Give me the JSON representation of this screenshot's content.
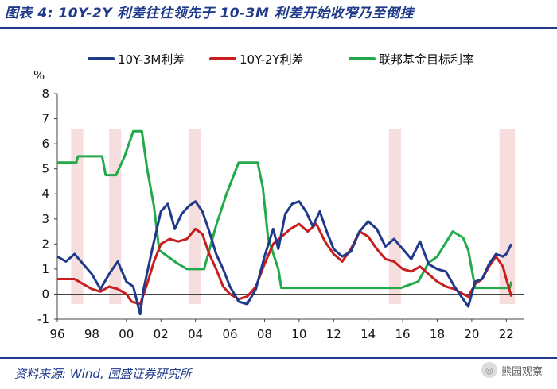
{
  "header": {
    "title": "图表 4: 10Y-2Y 利差往往领先于 10-3M 利差开始收窄乃至倒挂"
  },
  "footer": {
    "source": "资料来源: Wind, 国盛证券研究所",
    "watermark": "熊园观察"
  },
  "chart_data": {
    "type": "line",
    "yunit": "%",
    "ylim": [
      -1,
      8
    ],
    "yticks": [
      -1,
      0,
      1,
      2,
      3,
      4,
      5,
      6,
      7,
      8
    ],
    "xlim": [
      1996,
      2023
    ],
    "xticks": [
      {
        "year": 1996,
        "label": "96"
      },
      {
        "year": 1998,
        "label": "98"
      },
      {
        "year": 2000,
        "label": "00"
      },
      {
        "year": 2002,
        "label": "02"
      },
      {
        "year": 2004,
        "label": "04"
      },
      {
        "year": 2006,
        "label": "06"
      },
      {
        "year": 2008,
        "label": "08"
      },
      {
        "year": 2010,
        "label": "10"
      },
      {
        "year": 2012,
        "label": "12"
      },
      {
        "year": 2014,
        "label": "14"
      },
      {
        "year": 2016,
        "label": "16"
      },
      {
        "year": 2018,
        "label": "18"
      },
      {
        "year": 2020,
        "label": "20"
      },
      {
        "year": 2022,
        "label": "22"
      }
    ],
    "legend_position": "top",
    "shaded_periods": [
      [
        1996.8,
        1997.5
      ],
      [
        1999.0,
        1999.7
      ],
      [
        2003.6,
        2004.3
      ],
      [
        2015.2,
        2015.9
      ],
      [
        2021.6,
        2022.5
      ]
    ],
    "shade_color": "#f7dede",
    "series": [
      {
        "name": "10Y-3M利差",
        "color": "#1f3a8a",
        "points": [
          [
            1996.0,
            1.5
          ],
          [
            1996.5,
            1.3
          ],
          [
            1997.0,
            1.6
          ],
          [
            1997.5,
            1.2
          ],
          [
            1998.0,
            0.8
          ],
          [
            1998.5,
            0.2
          ],
          [
            1999.0,
            0.8
          ],
          [
            1999.5,
            1.3
          ],
          [
            2000.0,
            0.5
          ],
          [
            2000.4,
            0.3
          ],
          [
            2000.8,
            -0.8
          ],
          [
            2001.0,
            0.2
          ],
          [
            2001.5,
            1.8
          ],
          [
            2002.0,
            3.3
          ],
          [
            2002.4,
            3.6
          ],
          [
            2002.8,
            2.6
          ],
          [
            2003.2,
            3.2
          ],
          [
            2003.6,
            3.5
          ],
          [
            2004.0,
            3.7
          ],
          [
            2004.4,
            3.3
          ],
          [
            2004.8,
            2.5
          ],
          [
            2005.2,
            1.6
          ],
          [
            2005.6,
            1.0
          ],
          [
            2006.0,
            0.3
          ],
          [
            2006.5,
            -0.3
          ],
          [
            2007.0,
            -0.4
          ],
          [
            2007.5,
            0.2
          ],
          [
            2008.0,
            1.5
          ],
          [
            2008.5,
            2.6
          ],
          [
            2008.8,
            1.8
          ],
          [
            2009.2,
            3.2
          ],
          [
            2009.6,
            3.6
          ],
          [
            2010.0,
            3.7
          ],
          [
            2010.4,
            3.3
          ],
          [
            2010.8,
            2.7
          ],
          [
            2011.2,
            3.3
          ],
          [
            2011.6,
            2.5
          ],
          [
            2012.0,
            1.8
          ],
          [
            2012.5,
            1.5
          ],
          [
            2013.0,
            1.7
          ],
          [
            2013.5,
            2.5
          ],
          [
            2014.0,
            2.9
          ],
          [
            2014.5,
            2.6
          ],
          [
            2015.0,
            1.9
          ],
          [
            2015.5,
            2.2
          ],
          [
            2016.0,
            1.8
          ],
          [
            2016.5,
            1.4
          ],
          [
            2017.0,
            2.1
          ],
          [
            2017.5,
            1.2
          ],
          [
            2018.0,
            1.0
          ],
          [
            2018.5,
            0.9
          ],
          [
            2019.0,
            0.3
          ],
          [
            2019.5,
            -0.2
          ],
          [
            2019.8,
            -0.5
          ],
          [
            2020.2,
            0.5
          ],
          [
            2020.6,
            0.6
          ],
          [
            2021.0,
            1.2
          ],
          [
            2021.4,
            1.6
          ],
          [
            2021.8,
            1.5
          ],
          [
            2022.0,
            1.6
          ],
          [
            2022.3,
            2.0
          ]
        ]
      },
      {
        "name": "10Y-2Y利差",
        "color": "#c81e1e",
        "points": [
          [
            1996.0,
            0.6
          ],
          [
            1996.5,
            0.6
          ],
          [
            1997.0,
            0.6
          ],
          [
            1997.5,
            0.4
          ],
          [
            1998.0,
            0.2
          ],
          [
            1998.5,
            0.1
          ],
          [
            1999.0,
            0.3
          ],
          [
            1999.5,
            0.2
          ],
          [
            2000.0,
            0.0
          ],
          [
            2000.3,
            -0.3
          ],
          [
            2000.8,
            -0.4
          ],
          [
            2001.2,
            0.4
          ],
          [
            2001.6,
            1.3
          ],
          [
            2002.0,
            2.0
          ],
          [
            2002.5,
            2.2
          ],
          [
            2003.0,
            2.1
          ],
          [
            2003.5,
            2.2
          ],
          [
            2004.0,
            2.6
          ],
          [
            2004.4,
            2.4
          ],
          [
            2004.8,
            1.6
          ],
          [
            2005.2,
            1.0
          ],
          [
            2005.6,
            0.3
          ],
          [
            2006.0,
            0.0
          ],
          [
            2006.5,
            -0.2
          ],
          [
            2007.0,
            -0.1
          ],
          [
            2007.5,
            0.3
          ],
          [
            2008.0,
            1.2
          ],
          [
            2008.5,
            2.0
          ],
          [
            2009.0,
            2.3
          ],
          [
            2009.5,
            2.6
          ],
          [
            2010.0,
            2.8
          ],
          [
            2010.5,
            2.5
          ],
          [
            2011.0,
            2.8
          ],
          [
            2011.5,
            2.1
          ],
          [
            2012.0,
            1.6
          ],
          [
            2012.5,
            1.3
          ],
          [
            2013.0,
            1.8
          ],
          [
            2013.5,
            2.5
          ],
          [
            2014.0,
            2.3
          ],
          [
            2014.5,
            1.8
          ],
          [
            2015.0,
            1.4
          ],
          [
            2015.5,
            1.3
          ],
          [
            2016.0,
            1.0
          ],
          [
            2016.5,
            0.9
          ],
          [
            2017.0,
            1.1
          ],
          [
            2017.5,
            0.8
          ],
          [
            2018.0,
            0.5
          ],
          [
            2018.5,
            0.3
          ],
          [
            2019.0,
            0.2
          ],
          [
            2019.5,
            0.0
          ],
          [
            2019.8,
            -0.1
          ],
          [
            2020.2,
            0.4
          ],
          [
            2020.6,
            0.6
          ],
          [
            2021.0,
            1.1
          ],
          [
            2021.4,
            1.5
          ],
          [
            2021.8,
            1.1
          ],
          [
            2022.0,
            0.6
          ],
          [
            2022.3,
            -0.1
          ]
        ]
      },
      {
        "name": "联邦基金目标利率",
        "color": "#22aa4a",
        "points": [
          [
            1996.0,
            5.25
          ],
          [
            1997.1,
            5.25
          ],
          [
            1997.2,
            5.5
          ],
          [
            1998.6,
            5.5
          ],
          [
            1998.8,
            4.75
          ],
          [
            1999.4,
            4.75
          ],
          [
            1999.9,
            5.5
          ],
          [
            2000.4,
            6.5
          ],
          [
            2000.9,
            6.5
          ],
          [
            2001.2,
            5.0
          ],
          [
            2001.6,
            3.5
          ],
          [
            2001.9,
            1.75
          ],
          [
            2002.9,
            1.25
          ],
          [
            2003.5,
            1.0
          ],
          [
            2004.5,
            1.0
          ],
          [
            2005.2,
            2.75
          ],
          [
            2005.8,
            4.0
          ],
          [
            2006.5,
            5.25
          ],
          [
            2007.6,
            5.25
          ],
          [
            2007.9,
            4.25
          ],
          [
            2008.2,
            2.25
          ],
          [
            2008.8,
            1.0
          ],
          [
            2008.97,
            0.25
          ],
          [
            2015.9,
            0.25
          ],
          [
            2016.9,
            0.5
          ],
          [
            2017.5,
            1.25
          ],
          [
            2018.0,
            1.5
          ],
          [
            2018.9,
            2.5
          ],
          [
            2019.5,
            2.25
          ],
          [
            2019.8,
            1.75
          ],
          [
            2020.2,
            0.25
          ],
          [
            2022.2,
            0.25
          ],
          [
            2022.3,
            0.5
          ]
        ]
      }
    ]
  }
}
